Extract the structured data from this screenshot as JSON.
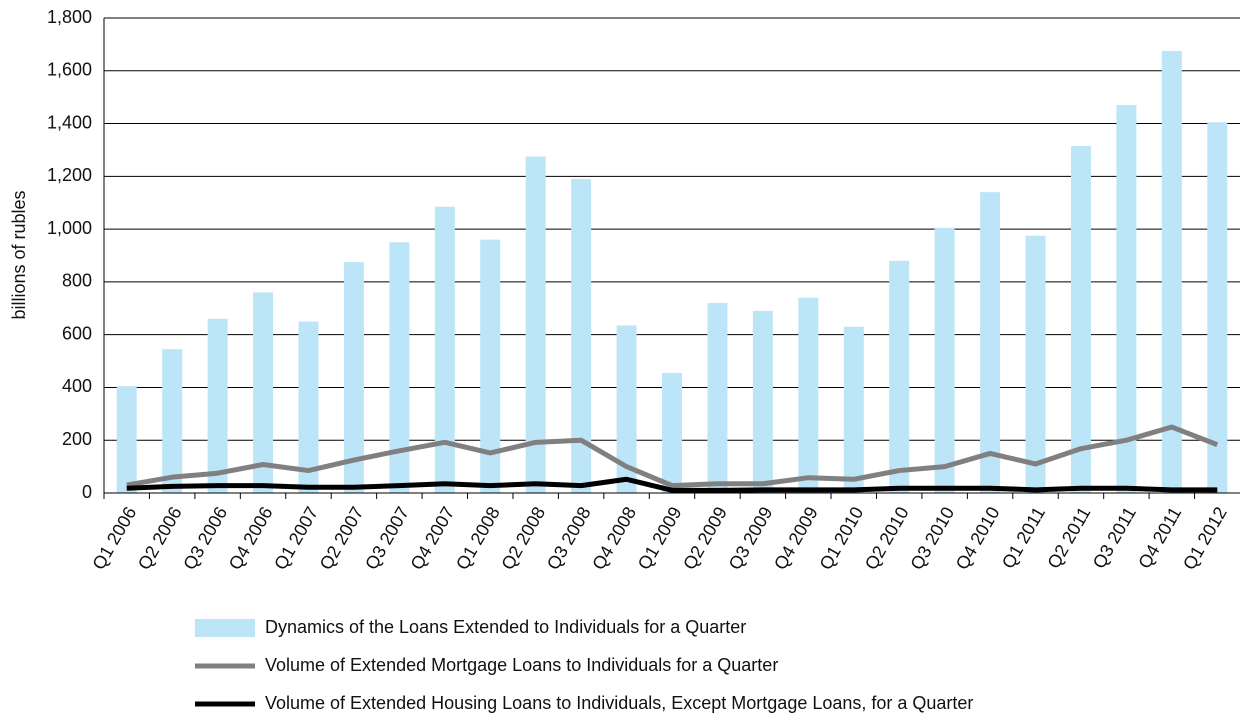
{
  "chart_data": {
    "type": "bar_line",
    "y_label": "billions of rubles",
    "categories": [
      "Q1 2006",
      "Q2 2006",
      "Q3 2006",
      "Q4 2006",
      "Q1 2007",
      "Q2 2007",
      "Q3 2007",
      "Q4 2007",
      "Q1 2008",
      "Q2 2008",
      "Q3 2008",
      "Q4 2008",
      "Q1 2009",
      "Q2 2009",
      "Q3 2009",
      "Q4 2009",
      "Q1 2010",
      "Q2 2010",
      "Q3 2010",
      "Q4 2010",
      "Q1 2011",
      "Q2 2011",
      "Q3 2011",
      "Q4 2011",
      "Q1 2012"
    ],
    "series": [
      {
        "name": "Dynamics of the Loans Extended to Individuals for a Quarter",
        "type": "bar",
        "color": "#bde5f8",
        "values": [
          405,
          545,
          660,
          760,
          650,
          875,
          950,
          1085,
          960,
          1275,
          1190,
          635,
          455,
          720,
          690,
          740,
          630,
          880,
          1005,
          1140,
          975,
          1315,
          1470,
          1675,
          1405
        ]
      },
      {
        "name": "Volume of Extended Mortgage Loans to Individuals  for a Quarter",
        "type": "line",
        "color": "#808080",
        "values": [
          30,
          60,
          75,
          108,
          85,
          125,
          160,
          192,
          152,
          192,
          200,
          100,
          28,
          35,
          35,
          58,
          52,
          85,
          100,
          150,
          110,
          168,
          200,
          250,
          183
        ]
      },
      {
        "name": "Volume of Extended Housing Loans to Individuals, Except Mortgage Loans, for a Quarter",
        "type": "line",
        "color": "#000000",
        "values": [
          18,
          25,
          28,
          28,
          22,
          22,
          28,
          35,
          28,
          35,
          28,
          52,
          10,
          10,
          12,
          12,
          12,
          18,
          18,
          18,
          12,
          18,
          18,
          12,
          12
        ]
      }
    ],
    "ylim": [
      0,
      1800
    ],
    "yticks": [
      0,
      200,
      400,
      600,
      800,
      {
        "value": 1000,
        "label": "1,000"
      },
      {
        "value": 1200,
        "label": "1,200"
      },
      {
        "value": 1400,
        "label": "1,400"
      },
      {
        "value": 1600,
        "label": "1,600"
      },
      {
        "value": 1800,
        "label": "1,800"
      }
    ],
    "grid": true
  }
}
